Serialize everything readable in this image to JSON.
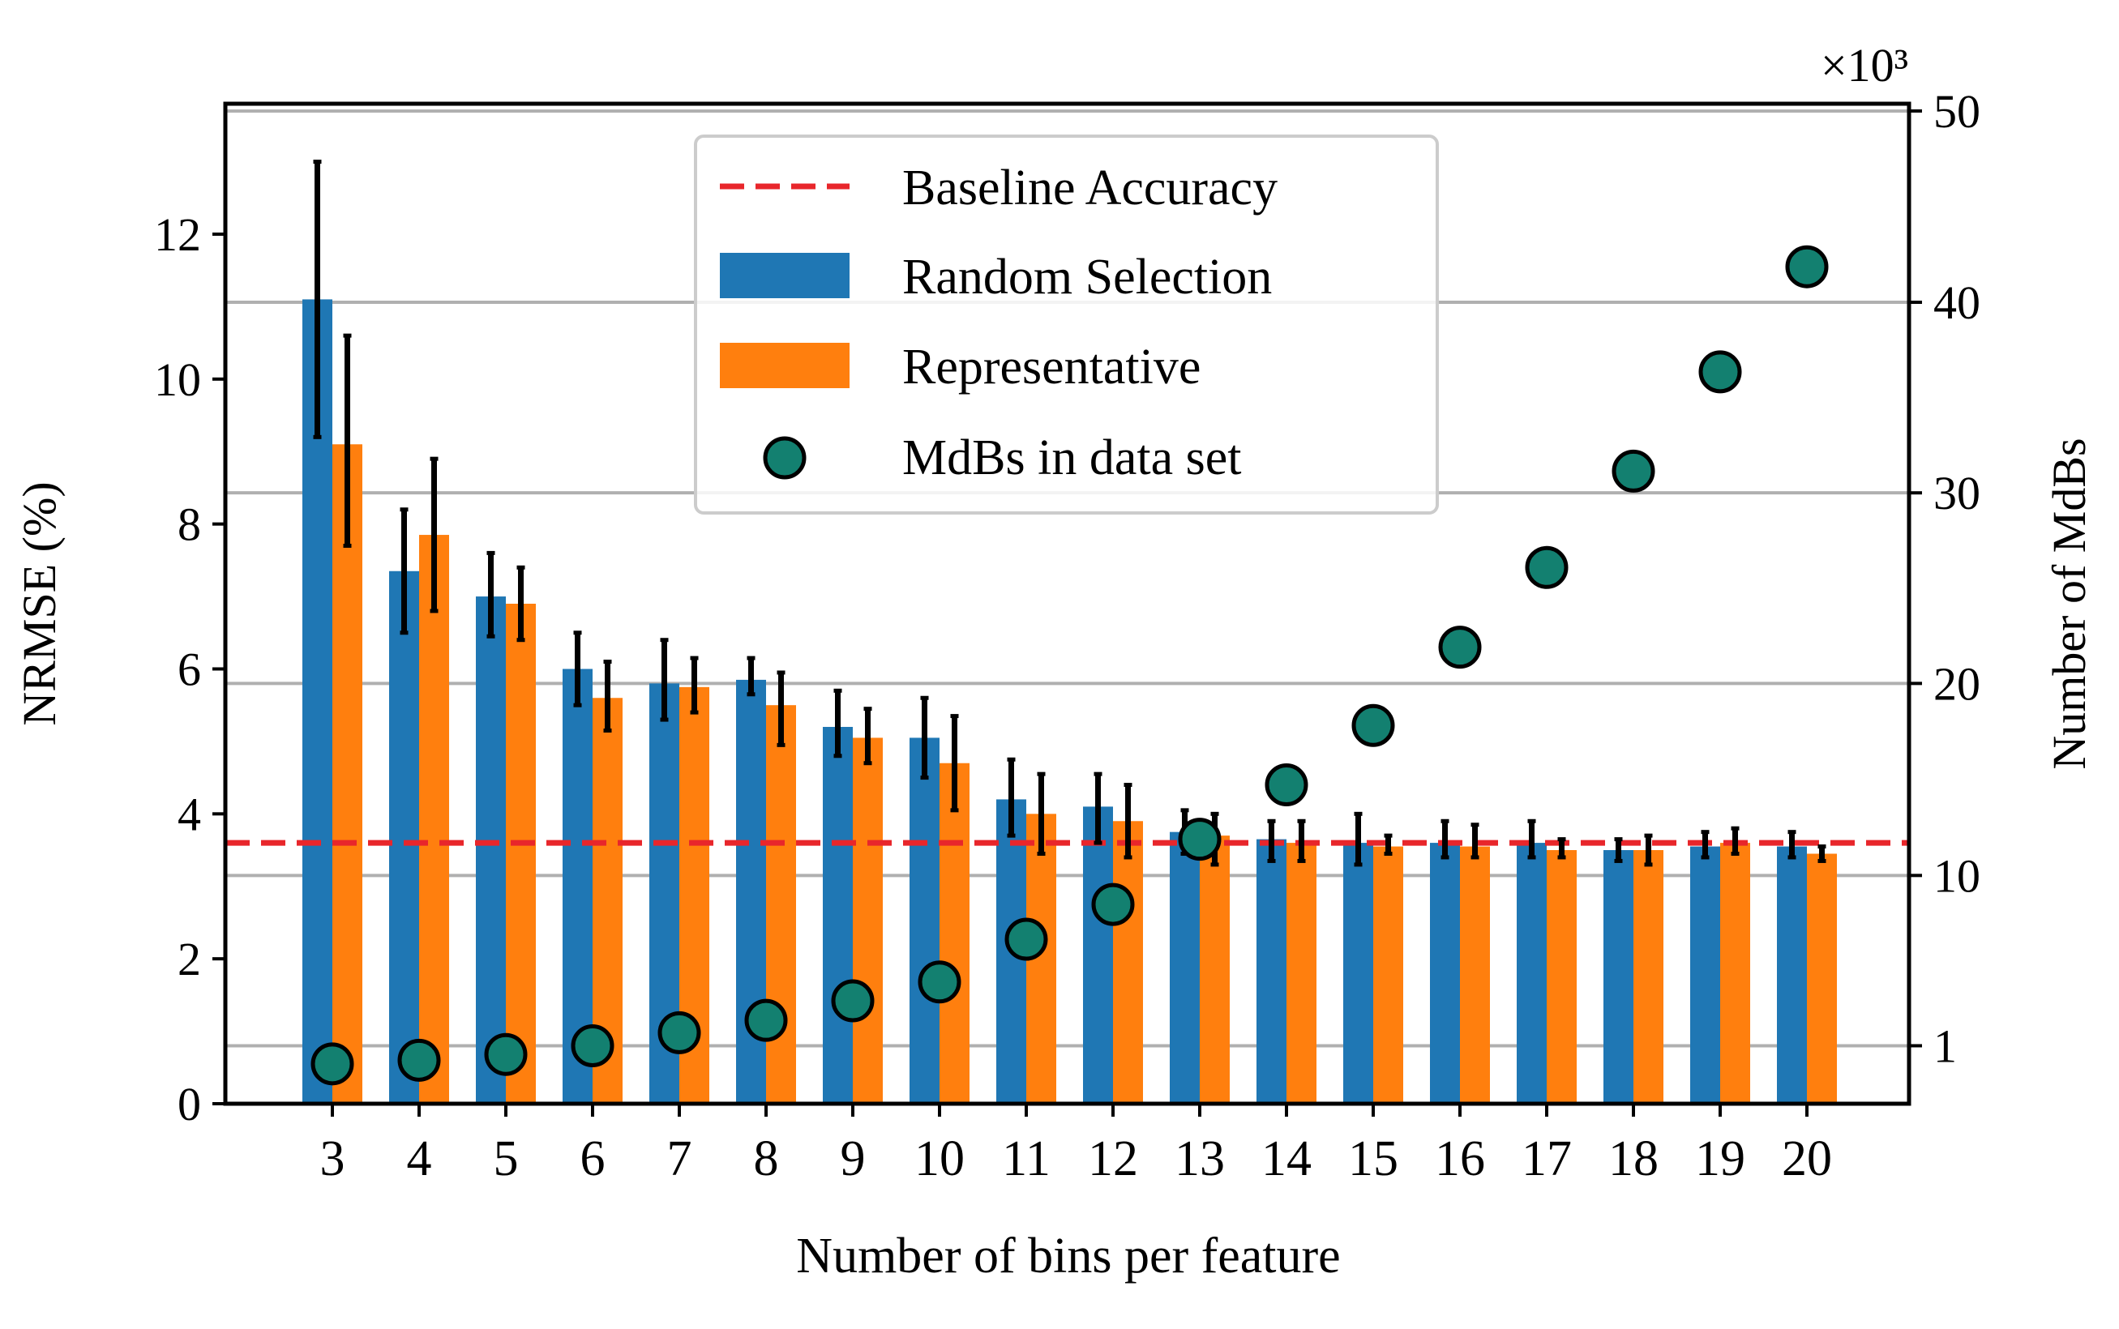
{
  "chart_data": {
    "type": "bar",
    "xlabel": "Number of bins per feature",
    "ylabel": "NRMSE (%)",
    "y2label": "Number of MdBs",
    "y2_multiplier_label": "×10³",
    "ylim": [
      0,
      13.8
    ],
    "yticks": [
      0,
      2,
      4,
      6,
      8,
      10,
      12
    ],
    "y2_ticks": [
      {
        "label": "1",
        "nrmse_pos": 0.8
      },
      {
        "label": "10",
        "nrmse_pos": 3.15
      },
      {
        "label": "20",
        "nrmse_pos": 5.8
      },
      {
        "label": "30",
        "nrmse_pos": 8.43
      },
      {
        "label": "40",
        "nrmse_pos": 11.06
      },
      {
        "label": "50",
        "nrmse_pos": 13.7
      }
    ],
    "categories": [
      "3",
      "4",
      "5",
      "6",
      "7",
      "8",
      "9",
      "10",
      "11",
      "12",
      "13",
      "14",
      "15",
      "16",
      "17",
      "18",
      "19",
      "20"
    ],
    "baseline": {
      "name": "Baseline Accuracy",
      "value": 3.6,
      "color": "#e8262b"
    },
    "series": [
      {
        "name": "Random Selection",
        "color": "#1f77b4",
        "values": [
          11.1,
          7.35,
          7.0,
          6.0,
          5.8,
          5.85,
          5.2,
          5.05,
          4.2,
          4.1,
          3.75,
          3.65,
          3.6,
          3.6,
          3.6,
          3.5,
          3.55,
          3.55
        ],
        "err_low": [
          9.2,
          6.5,
          6.45,
          5.5,
          5.3,
          5.65,
          4.8,
          4.5,
          3.7,
          3.6,
          3.45,
          3.35,
          3.3,
          3.4,
          3.4,
          3.35,
          3.4,
          3.4
        ],
        "err_high": [
          13.0,
          8.2,
          7.6,
          6.5,
          6.4,
          6.15,
          5.7,
          5.6,
          4.75,
          4.55,
          4.05,
          3.9,
          4.0,
          3.9,
          3.9,
          3.65,
          3.75,
          3.75
        ]
      },
      {
        "name": "Representative",
        "color": "#ff7f0e",
        "values": [
          9.1,
          7.85,
          6.9,
          5.6,
          5.75,
          5.5,
          5.05,
          4.7,
          4.0,
          3.9,
          3.7,
          3.6,
          3.55,
          3.55,
          3.5,
          3.5,
          3.6,
          3.45
        ],
        "err_low": [
          7.7,
          6.8,
          6.4,
          5.15,
          5.4,
          4.95,
          4.7,
          4.05,
          3.45,
          3.4,
          3.3,
          3.35,
          3.45,
          3.4,
          3.4,
          3.3,
          3.45,
          3.35
        ],
        "err_high": [
          10.6,
          8.9,
          7.4,
          6.1,
          6.15,
          5.95,
          5.45,
          5.35,
          4.55,
          4.4,
          4.0,
          3.9,
          3.7,
          3.85,
          3.65,
          3.7,
          3.8,
          3.55
        ]
      }
    ],
    "scatter": {
      "name": "MdBs in data set",
      "color": "#138070",
      "edge": "#000000",
      "values_nrmse_scale": [
        0.55,
        0.6,
        0.68,
        0.8,
        0.98,
        1.15,
        1.42,
        1.68,
        2.27,
        2.75,
        3.65,
        4.4,
        5.22,
        6.3,
        7.4,
        8.73,
        10.1,
        11.55
      ]
    },
    "grid": "horizontal lines at right-axis ticks",
    "legend_placement": "top-center"
  }
}
